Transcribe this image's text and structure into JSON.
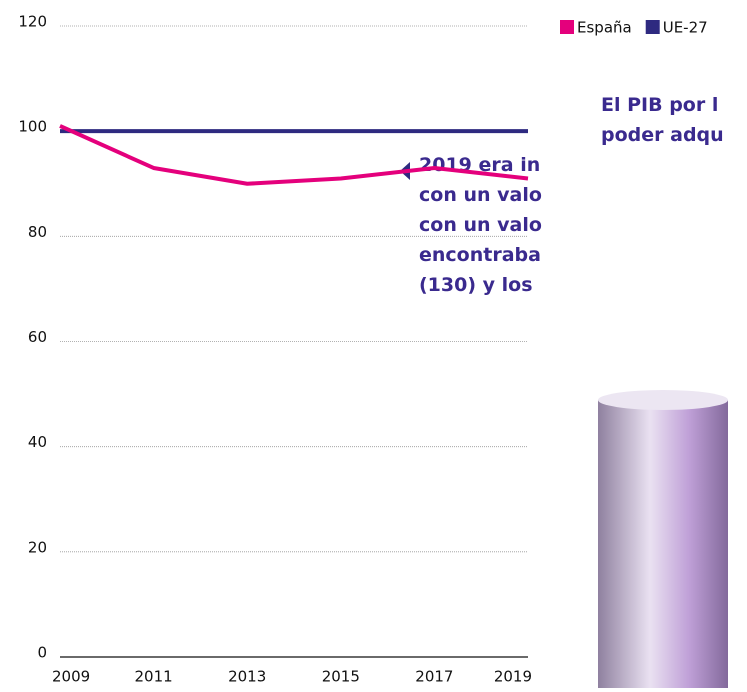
{
  "chart_data": {
    "type": "line",
    "x": [
      2009,
      2011,
      2013,
      2015,
      2017,
      2019
    ],
    "xlim": [
      2009,
      2019
    ],
    "xticks": [
      2009,
      2011,
      2013,
      2015,
      2017,
      2019
    ],
    "ylim": [
      0,
      120
    ],
    "yticks": [
      0,
      20,
      40,
      60,
      80,
      100,
      120
    ],
    "grid": true,
    "series": [
      {
        "name": "España",
        "color": "#e4007c",
        "values": [
          101,
          93,
          90,
          91,
          93,
          91
        ]
      },
      {
        "name": "UE-27",
        "color": "#2e2a80",
        "values": [
          100,
          100,
          100,
          100,
          100,
          100
        ]
      }
    ]
  },
  "callout": {
    "lines": [
      "El PIB por l",
      "poder adqu",
      "2019 era in",
      "con un valo",
      "con un valo",
      "encontraba",
      "(130) y los"
    ]
  }
}
